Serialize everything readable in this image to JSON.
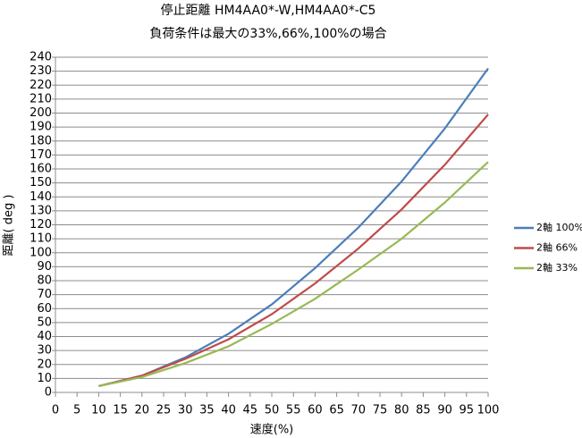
{
  "chart_data": {
    "type": "line",
    "title": "停止距離 HM4AA0*-W,HM4AA0*-C5",
    "subtitle": "負荷条件は最大の33%,66%,100%の場合",
    "x_label": "速度(%)",
    "y_label": "距離( deg )",
    "x": [
      10,
      20,
      30,
      40,
      50,
      60,
      70,
      80,
      90,
      100
    ],
    "series": [
      {
        "name": "2軸 100%",
        "color": "#4a7ebb",
        "values": [
          4.5,
          12,
          25,
          42,
          63,
          89,
          118,
          151,
          189,
          232
        ]
      },
      {
        "name": "2軸 66%",
        "color": "#be4b48",
        "values": [
          4.5,
          12,
          24,
          38,
          56,
          78,
          103,
          131,
          163,
          199
        ]
      },
      {
        "name": "2軸 33%",
        "color": "#98b954",
        "values": [
          4.5,
          11,
          21,
          33,
          49,
          67,
          88,
          110,
          136,
          165
        ]
      }
    ],
    "xlim": [
      0,
      100
    ],
    "xticks": [
      0,
      5,
      10,
      15,
      20,
      25,
      30,
      35,
      40,
      45,
      50,
      55,
      60,
      65,
      70,
      75,
      80,
      85,
      90,
      95,
      100
    ],
    "ylim": [
      0,
      240
    ],
    "yticks": [
      0,
      10,
      20,
      30,
      40,
      50,
      60,
      70,
      80,
      90,
      100,
      110,
      120,
      130,
      140,
      150,
      160,
      170,
      180,
      190,
      200,
      210,
      220,
      230,
      240
    ],
    "grid": true,
    "legend": "right"
  }
}
